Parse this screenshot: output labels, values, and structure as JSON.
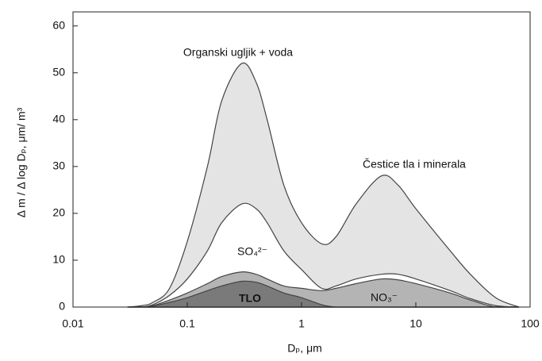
{
  "chart_data": {
    "type": "area",
    "x_label": "Dₚ, μm",
    "y_label": "Δ m / Δ log Dₚ, μm/ m³",
    "x": [
      0.03,
      0.04,
      0.05,
      0.07,
      0.1,
      0.15,
      0.2,
      0.3,
      0.4,
      0.5,
      0.7,
      1,
      1.5,
      2,
      3,
      5,
      7,
      10,
      20,
      30,
      50,
      80
    ],
    "series": [
      {
        "name": "Organski ugljik + voda",
        "color": "#e4e4e4",
        "values": [
          0,
          0.3,
          1,
          4,
          14,
          30,
          44,
          52,
          48,
          40,
          26,
          18,
          13.5,
          15,
          22,
          28,
          26,
          21,
          12,
          7,
          2,
          0
        ]
      },
      {
        "name": "SO₄²⁻",
        "color": "#ffffff",
        "values": [
          0,
          0,
          0.5,
          2.5,
          6,
          12,
          18,
          22,
          21,
          18,
          12,
          8,
          4,
          4.5,
          6,
          7,
          7,
          6,
          3.5,
          1.8,
          0.3,
          0
        ]
      },
      {
        "name": "NO₃⁻",
        "color": "#b4b4b4",
        "values": [
          0,
          0,
          0.3,
          1.5,
          3,
          5,
          6.5,
          7.5,
          7,
          6,
          4.5,
          4,
          3.5,
          4,
          5,
          6,
          5.8,
          5,
          3,
          1.5,
          0,
          0
        ]
      },
      {
        "name": "TLO",
        "color": "#7a7a7a",
        "values": [
          0,
          0,
          0.2,
          1,
          2,
          3.5,
          4.5,
          5.5,
          5.3,
          4.5,
          3,
          2,
          0.5,
          0,
          0,
          0,
          0,
          0,
          0,
          0,
          0,
          0
        ]
      }
    ],
    "annotations": [
      "Čestice tla i minerala"
    ],
    "xlim": [
      0.01,
      100
    ],
    "xticks": [
      0.01,
      0.1,
      1,
      10,
      100
    ],
    "log_x": true,
    "ylim": [
      0,
      63
    ],
    "yticks": [
      0,
      10,
      20,
      30,
      40,
      50,
      60
    ]
  }
}
